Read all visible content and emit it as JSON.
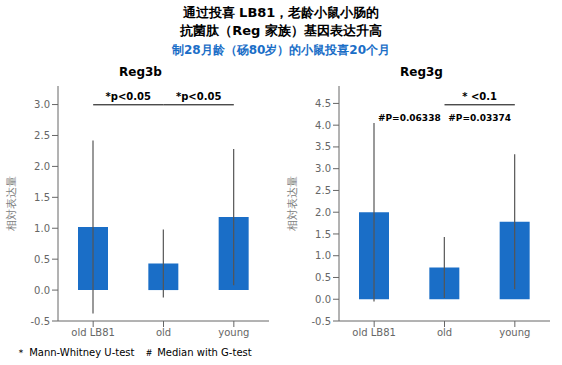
{
  "title": "通过投喜 LB81，老龄小鼠小肠的\n抗菌肽（Reg 家族）基因表达升高",
  "subtitle": "制28月龄（砀80岁）的小鼠投喜20个月",
  "footnote": "＊ Mann-Whitney U-test   ＃ Median with G-test",
  "chart_data": [
    {
      "type": "bar",
      "title": "Reg3b",
      "categories": [
        "old LB81",
        "old",
        "young"
      ],
      "values": [
        1.02,
        0.43,
        1.18
      ],
      "errors": [
        1.4,
        0.55,
        1.1
      ],
      "color": "#1a6ec7",
      "ylim": [
        -0.5,
        3.3
      ],
      "yticks": [
        -0.5,
        {
          "value": 0,
          "label": "0.0"
        },
        0.5,
        {
          "value": 1,
          "label": "1.0"
        },
        1.5,
        {
          "value": 2,
          "label": "2.0"
        },
        2.5,
        {
          "value": 3,
          "label": "3.0"
        }
      ],
      "ylabel": "相対表达量",
      "brackets": [
        {
          "text": "*p<0.05",
          "from": "old LB81",
          "to": "old"
        },
        {
          "text": "*p<0.05",
          "from": "old",
          "to": "young"
        }
      ],
      "annotations": []
    },
    {
      "type": "bar",
      "title": "Reg3g",
      "categories": [
        "old LB81",
        "old",
        "young"
      ],
      "values": [
        2.0,
        0.73,
        1.78
      ],
      "errors": [
        2.05,
        0.7,
        1.55
      ],
      "color": "#1a6ec7",
      "ylim": [
        -0.5,
        4.9
      ],
      "yticks": [
        -0.5,
        {
          "value": 0,
          "label": "0.0"
        },
        0.5,
        {
          "value": 1,
          "label": "1.0"
        },
        1.5,
        {
          "value": 2,
          "label": "2.0"
        },
        2.5,
        {
          "value": 3,
          "label": "3.0"
        },
        3.5,
        {
          "value": 4,
          "label": "4.0"
        },
        4.5
      ],
      "ylabel": "相対表达量",
      "brackets": [
        {
          "text": "* <0.1",
          "from": "old",
          "to": "young"
        }
      ],
      "annotations": [
        {
          "text": "#P=0.06338",
          "from": "old LB81",
          "to": "old"
        },
        {
          "text": "#P=0.03374",
          "from": "old",
          "to": "young"
        }
      ]
    }
  ]
}
